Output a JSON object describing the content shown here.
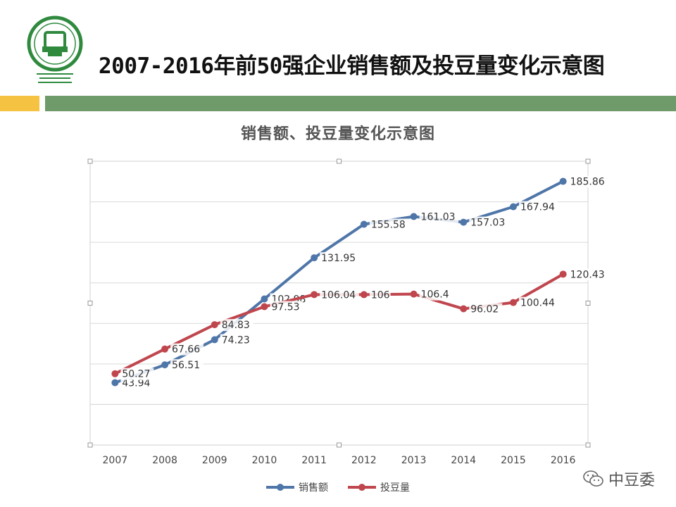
{
  "header": {
    "title": "2007-2016年前50强企业销售额及投豆量变化示意图",
    "logo_icon": "cfia-logo-icon"
  },
  "colors": {
    "accent_yellow": "#f5c242",
    "accent_green": "#6f9a6a",
    "sales": "#4f76a8",
    "beans": "#c0464e"
  },
  "watermark": {
    "label": "中豆委",
    "icon": "wechat-icon"
  },
  "chart_data": {
    "type": "line",
    "title": "销售额、投豆量变化示意图",
    "x": [
      "2007",
      "2008",
      "2009",
      "2010",
      "2011",
      "2012",
      "2013",
      "2014",
      "2015",
      "2016"
    ],
    "series": [
      {
        "name": "销售额",
        "values": [
          43.94,
          56.51,
          74.23,
          102.98,
          131.95,
          155.58,
          161.03,
          157.03,
          167.94,
          185.86
        ],
        "color": "#4f76a8"
      },
      {
        "name": "投豆量",
        "values": [
          50.27,
          67.66,
          84.83,
          97.53,
          106.04,
          106,
          106.4,
          96.02,
          100.44,
          120.43
        ],
        "color": "#c0464e"
      }
    ],
    "grid": "horizontal",
    "legend_position": "bottom"
  }
}
